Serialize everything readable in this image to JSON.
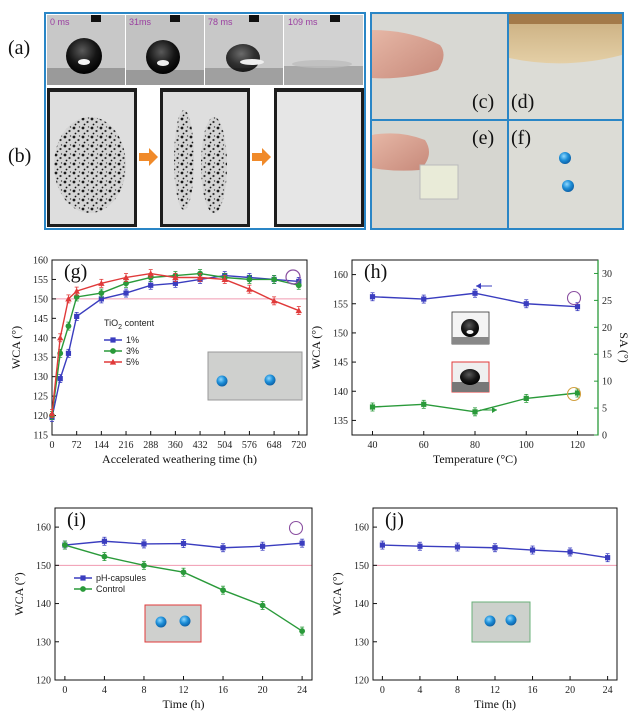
{
  "panel_labels": {
    "a": "(a)",
    "b": "(b)",
    "c": "(c)",
    "d": "(d)",
    "e": "(e)",
    "f": "(f)",
    "g": "(g)",
    "h": "(h)",
    "i": "(i)",
    "j": "(j)"
  },
  "frame_times": [
    "0 ms",
    "31ms",
    "78 ms",
    "109 ms"
  ],
  "colors": {
    "blue": "#3a3dbf",
    "green": "#2a9a3a",
    "red": "#e03a3a",
    "violet": "#8a4fa0",
    "ref_line": "#f09ab0"
  },
  "chart_data": [
    {
      "id": "g",
      "type": "line",
      "xlabel": "Accelerated weathering time (h)",
      "ylabel": "WCA (°)",
      "xlim": [
        0,
        744
      ],
      "ylim": [
        115,
        160
      ],
      "xticks": [
        0,
        72,
        144,
        216,
        288,
        360,
        432,
        504,
        576,
        648,
        720
      ],
      "yticks": [
        115,
        120,
        125,
        130,
        135,
        140,
        145,
        150,
        155,
        160
      ],
      "ref_line": 150,
      "legend_title_prefix": "TiO",
      "legend_title_sub": "2",
      "legend_title_suffix": " content",
      "series": [
        {
          "name": "1%",
          "color": "#3a3dbf",
          "marker": "square",
          "x": [
            0,
            24,
            48,
            72,
            144,
            216,
            288,
            360,
            432,
            504,
            576,
            648,
            720
          ],
          "y": [
            119.5,
            129.5,
            136,
            145.5,
            150,
            151.5,
            153.5,
            154,
            155,
            156,
            155.5,
            155,
            154.5
          ]
        },
        {
          "name": "3%",
          "color": "#2a9a3a",
          "marker": "circle",
          "x": [
            0,
            24,
            48,
            72,
            144,
            216,
            288,
            360,
            432,
            504,
            576,
            648,
            720
          ],
          "y": [
            120,
            136,
            143,
            150.5,
            151.5,
            154,
            155.5,
            156,
            156.5,
            155.5,
            155,
            155,
            153.5
          ]
        },
        {
          "name": "5%",
          "color": "#e03a3a",
          "marker": "triangle",
          "x": [
            0,
            24,
            48,
            72,
            144,
            216,
            288,
            360,
            432,
            504,
            576,
            648,
            720
          ],
          "y": [
            120.5,
            140,
            150,
            152,
            154,
            155.5,
            156.5,
            155.5,
            155.5,
            155,
            152.5,
            149.5,
            147
          ]
        }
      ]
    },
    {
      "id": "h",
      "type": "line",
      "xlabel": "Temperature (°C)",
      "ylabel": "WCA (°)",
      "y2label": "SA (°)",
      "xlim": [
        32,
        128
      ],
      "ylim": [
        132.5,
        162.5
      ],
      "y2lim": [
        0,
        32.5
      ],
      "xticks": [
        40,
        60,
        80,
        100,
        120
      ],
      "yticks": [
        135,
        140,
        145,
        150,
        155,
        160
      ],
      "y2ticks": [
        0,
        5,
        10,
        15,
        20,
        25,
        30
      ],
      "series": [
        {
          "name": "WCA",
          "axis": "left",
          "color": "#3a3dbf",
          "marker": "square",
          "x": [
            40,
            60,
            80,
            100,
            120
          ],
          "y": [
            156.2,
            155.8,
            156.8,
            155,
            154.5
          ]
        },
        {
          "name": "SA",
          "axis": "right",
          "color": "#2a9a3a",
          "marker": "square",
          "x": [
            40,
            60,
            80,
            100,
            120
          ],
          "y": [
            5.2,
            5.7,
            4.3,
            6.8,
            7.8
          ]
        }
      ]
    },
    {
      "id": "i",
      "type": "line",
      "xlabel": "Time (h)",
      "ylabel": "WCA (°)",
      "xlim": [
        -1,
        25
      ],
      "ylim": [
        120,
        165
      ],
      "xticks": [
        0,
        4,
        8,
        12,
        16,
        20,
        24
      ],
      "yticks": [
        120,
        130,
        140,
        150,
        160
      ],
      "ref_line": 150,
      "series": [
        {
          "name": "pH-capsules",
          "color": "#3a3dbf",
          "marker": "square",
          "x": [
            0,
            4,
            8,
            12,
            16,
            20,
            24
          ],
          "y": [
            155.3,
            156.3,
            155.6,
            155.7,
            154.6,
            155,
            155.8
          ]
        },
        {
          "name": "Control",
          "color": "#2a9a3a",
          "marker": "circle",
          "x": [
            0,
            4,
            8,
            12,
            16,
            20,
            24
          ],
          "y": [
            155.3,
            152.3,
            150,
            148.2,
            143.5,
            139.5,
            132.8
          ]
        }
      ]
    },
    {
      "id": "j",
      "type": "line",
      "xlabel": "Time (h)",
      "ylabel": "WCA (°)",
      "xlim": [
        -1,
        25
      ],
      "ylim": [
        120,
        165
      ],
      "xticks": [
        0,
        4,
        8,
        12,
        16,
        20,
        24
      ],
      "yticks": [
        120,
        130,
        140,
        150,
        160
      ],
      "ref_line": 150,
      "series": [
        {
          "name": "",
          "color": "#3a3dbf",
          "marker": "square",
          "x": [
            0,
            4,
            8,
            12,
            16,
            20,
            24
          ],
          "y": [
            155.3,
            155,
            154.8,
            154.6,
            154,
            153.5,
            152
          ]
        }
      ]
    }
  ]
}
